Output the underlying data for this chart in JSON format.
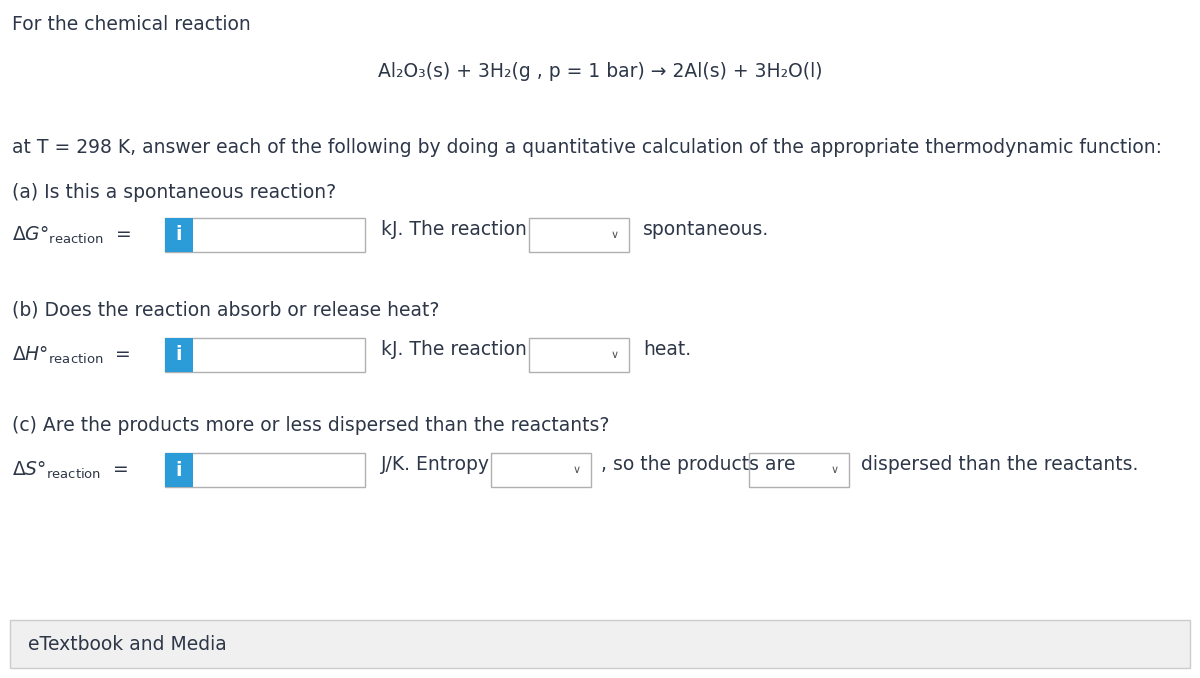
{
  "bg_color": "#ffffff",
  "border_color": "#cccccc",
  "blue_color": "#2b9cd8",
  "text_color": "#2d3748",
  "footer_bg": "#f0f0f0",
  "title_text": "For the chemical reaction",
  "reaction_text": "Al₂O₃(s) + 3H₂(g , p = 1 bar) → 2Al(s) + 3H₂O(l)",
  "temp_text": "at T = 298 K, answer each of the following by doing a quantitative calculation of the appropriate thermodynamic function:",
  "q_a": "(a) Is this a spontaneous reaction?",
  "unit_a": "kJ. The reaction",
  "end_a": "spontaneous.",
  "q_b": "(b) Does the reaction absorb or release heat?",
  "unit_b": "kJ. The reaction",
  "end_b": "heat.",
  "q_c": "(c) Are the products more or less dispersed than the reactants?",
  "unit_c": "J/K. Entropy",
  "end_c1": ", so the products are",
  "end_c2": "dispersed than the reactants.",
  "footer": "eTextbook and Media",
  "fs": 13.5
}
